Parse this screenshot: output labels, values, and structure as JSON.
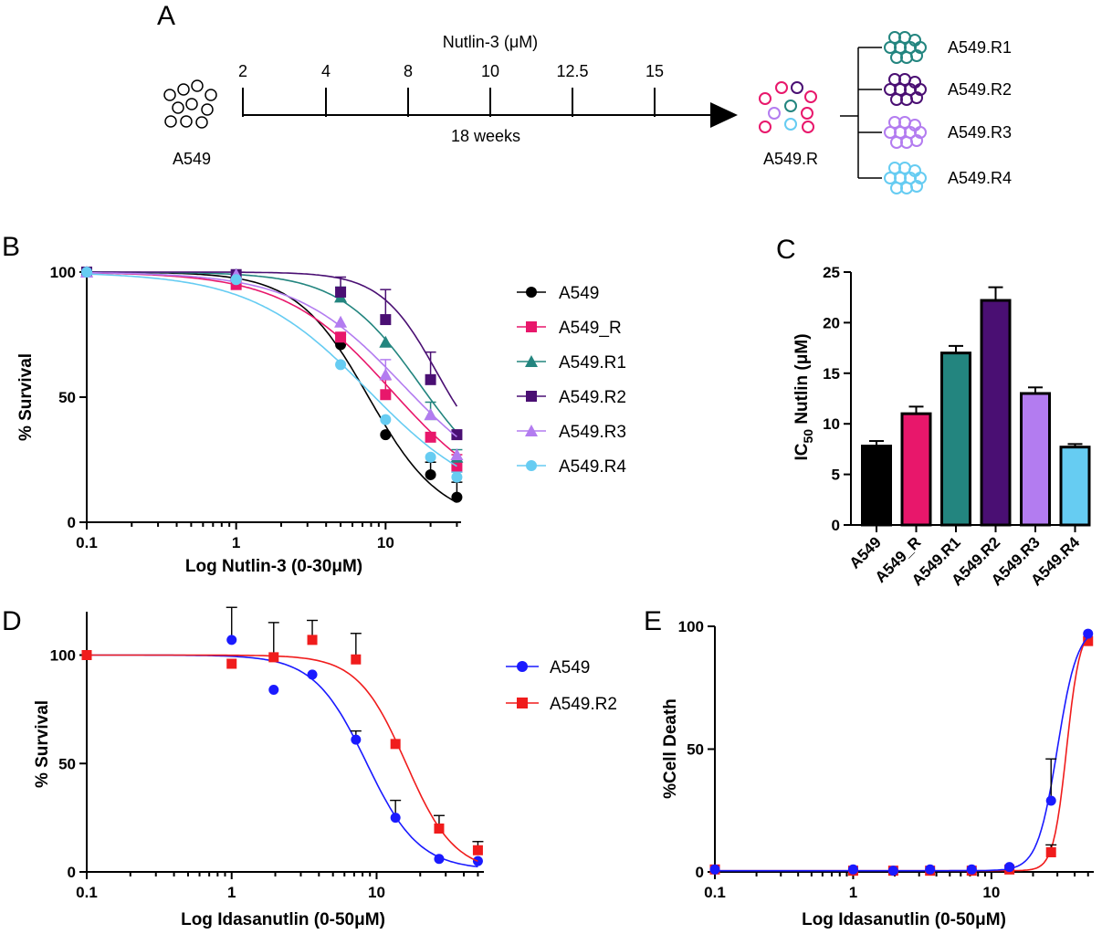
{
  "panel_labels": [
    "A",
    "B",
    "C",
    "D",
    "E"
  ],
  "timeline": {
    "title": "Nutlin-3 (μM)",
    "doses": [
      "2",
      "4",
      "8",
      "10",
      "12.5",
      "15"
    ],
    "duration": "18 weeks",
    "parent_label": "A549",
    "pool_label": "A549.R",
    "clones": [
      {
        "label": "A549.R1",
        "color": "#23857f"
      },
      {
        "label": "A549.R2",
        "color": "#4a0f73"
      },
      {
        "label": "A549.R3",
        "color": "#b37cf0"
      },
      {
        "label": "A549.R4",
        "color": "#66ccf2"
      }
    ],
    "pool_colors": [
      "#e8176b",
      "#4a0f73",
      "#23857f",
      "#b37cf0",
      "#66ccf2"
    ]
  },
  "chart_data": [
    {
      "panel": "B",
      "type": "scatter",
      "xscale": "log",
      "xlabel": "Log Nutlin-3 (0-30μM)",
      "ylabel": "% Survival",
      "xlim": [
        0.1,
        32
      ],
      "ylim": [
        0,
        100
      ],
      "xticks": [
        "0.1",
        "1",
        "10"
      ],
      "yticks": [
        "0",
        "50",
        "100"
      ],
      "x": [
        0.1,
        1,
        5,
        10,
        20,
        30
      ],
      "legend": "right",
      "series": [
        {
          "name": "A549",
          "color": "#000000",
          "marker": "circle",
          "values": [
            100,
            97,
            71,
            35,
            19,
            10
          ],
          "err": [
            0,
            0,
            4,
            0,
            5,
            6
          ],
          "ic50": 7.7,
          "hill": 1.8,
          "bottom": 0
        },
        {
          "name": "A549_R",
          "color": "#e8176b",
          "marker": "square",
          "values": [
            100,
            95,
            74,
            51,
            34,
            22
          ],
          "err": [
            0,
            0,
            0,
            6,
            0,
            5
          ],
          "ic50": 11,
          "hill": 1.2,
          "bottom": 5
        },
        {
          "name": "A549.R1",
          "color": "#23857f",
          "marker": "triangle",
          "values": [
            100,
            99,
            90,
            72,
            43,
            26
          ],
          "err": [
            0,
            0,
            4,
            0,
            5,
            3
          ],
          "ic50": 17,
          "hill": 1.6,
          "bottom": 10
        },
        {
          "name": "A549.R2",
          "color": "#4a0f73",
          "marker": "square",
          "values": [
            100,
            99,
            92,
            81,
            57,
            35
          ],
          "err": [
            0,
            0,
            6,
            12,
            11,
            0
          ],
          "ic50": 22,
          "hill": 2.3,
          "bottom": 20
        },
        {
          "name": "A549.R3",
          "color": "#b37cf0",
          "marker": "triangle",
          "values": [
            100,
            99,
            80,
            59,
            43,
            27
          ],
          "err": [
            0,
            0,
            0,
            6,
            0,
            0
          ],
          "ic50": 13,
          "hill": 1.2,
          "bottom": 10
        },
        {
          "name": "A549.R4",
          "color": "#66ccf2",
          "marker": "circle",
          "values": [
            100,
            97,
            63,
            41,
            26,
            18
          ],
          "err": [
            0,
            0,
            0,
            0,
            0,
            2
          ],
          "ic50": 7.7,
          "hill": 1.1,
          "bottom": 5
        }
      ]
    },
    {
      "panel": "C",
      "type": "bar",
      "ylabel": "IC50 Nutlin (μM)",
      "ylabel_main": "IC",
      "ylabel_sub": "50",
      "ylabel_rest": " Nutlin (μM)",
      "ylim": [
        0,
        25
      ],
      "yticks": [
        "0",
        "5",
        "10",
        "15",
        "20",
        "25"
      ],
      "categories": [
        "A549",
        "A549_R",
        "A549.R1",
        "A549.R2",
        "A549.R3",
        "A549.R4"
      ],
      "values": [
        7.8,
        11,
        17,
        22.2,
        13,
        7.7
      ],
      "err": [
        0.5,
        0.7,
        0.7,
        1.3,
        0.6,
        0.3
      ],
      "colors": [
        "#000000",
        "#e8176b",
        "#23857f",
        "#4a0f73",
        "#b37cf0",
        "#66ccf2"
      ]
    },
    {
      "panel": "D",
      "type": "scatter",
      "xscale": "log",
      "xlabel": "Log Idasanutlin (0-50μM)",
      "ylabel": "% Survival",
      "xlim": [
        0.1,
        55
      ],
      "ylim": [
        0,
        120
      ],
      "xticks": [
        "0.1",
        "1",
        "10"
      ],
      "yticks": [
        "0",
        "50",
        "100"
      ],
      "legend": "right",
      "series": [
        {
          "name": "A549",
          "color": "#1a1aff",
          "marker": "circle",
          "x": [
            0.1,
            1,
            1.95,
            3.6,
            7.2,
            13.5,
            27,
            50
          ],
          "values": [
            100,
            107,
            84,
            91,
            61,
            25,
            6,
            5
          ],
          "err": [
            0,
            15,
            0,
            0,
            4,
            8,
            0,
            0
          ],
          "ic50": 8.5,
          "hill": 2.4,
          "bottom": 1
        },
        {
          "name": "A549.R2",
          "color": "#f01c1c",
          "marker": "square",
          "x": [
            0.1,
            1,
            1.95,
            3.6,
            7.2,
            13.5,
            27,
            50
          ],
          "values": [
            100,
            96,
            99,
            107,
            98,
            59,
            20,
            10
          ],
          "err": [
            0,
            0,
            16,
            9,
            12,
            0,
            6,
            4
          ],
          "ic50": 16,
          "hill": 2.6,
          "bottom": 0
        }
      ]
    },
    {
      "panel": "E",
      "type": "scatter",
      "xscale": "log",
      "xlabel": "Log Idasanutlin (0-50μM)",
      "ylabel": "%Cell Death",
      "xlim": [
        0.1,
        55
      ],
      "ylim": [
        0,
        100
      ],
      "xticks": [
        "0.1",
        "1",
        "10"
      ],
      "yticks": [
        "0",
        "50",
        "100"
      ],
      "series": [
        {
          "name": "A549",
          "color": "#1a1aff",
          "marker": "circle",
          "x": [
            0.1,
            1,
            1.95,
            3.6,
            7.2,
            13.5,
            27,
            50
          ],
          "values": [
            1,
            1,
            0.5,
            1,
            1,
            2,
            29,
            97
          ],
          "err": [
            0,
            0,
            0,
            0,
            0,
            0,
            17,
            0
          ],
          "ic50": 30,
          "hill": 6,
          "bottom": 0.5,
          "top": 100
        },
        {
          "name": "A549.R2",
          "color": "#f01c1c",
          "marker": "square",
          "x": [
            0.1,
            1,
            1.95,
            3.6,
            7.2,
            13.5,
            27,
            50
          ],
          "values": [
            1,
            0.5,
            0.5,
            0.5,
            0.5,
            1,
            8,
            94
          ],
          "err": [
            0,
            0,
            0,
            0,
            0,
            0,
            3,
            0
          ],
          "ic50": 35,
          "hill": 9,
          "bottom": 0.5,
          "top": 100
        }
      ]
    }
  ]
}
